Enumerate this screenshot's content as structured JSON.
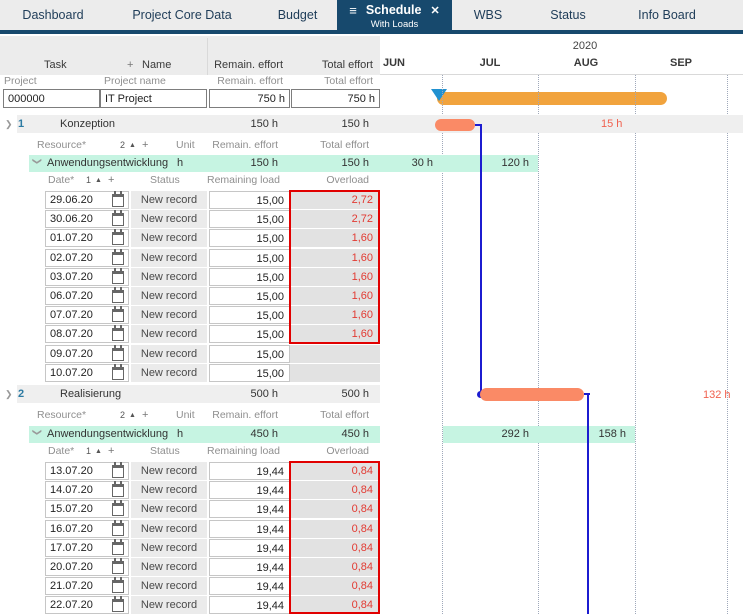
{
  "colors": {
    "navy": "#17496d",
    "tabtext": "#1e3c58",
    "orange": "#f1a33d",
    "salmon": "#fa8a66",
    "mint": "#c6f4e2",
    "blue": "#1c1cd0",
    "num": "#2d7ba3",
    "red": "#e23a32",
    "redborder": "#e10000",
    "redlabel": "#f0614f",
    "tribl": "#2191d0"
  },
  "icons": {
    "menu": "≡",
    "close": "✕",
    "chevron": "❯",
    "sort_asc": "▲",
    "add": "+"
  },
  "tabs": [
    {
      "label": "Dashboard"
    },
    {
      "label": "Project Core Data"
    },
    {
      "label": "Budget"
    },
    {
      "label": "Schedule",
      "sublabel": "With Loads",
      "active": true
    },
    {
      "label": "WBS"
    },
    {
      "label": "Status"
    },
    {
      "label": "Info Board"
    }
  ],
  "gantt": {
    "year": "2020",
    "months": [
      "JUN",
      "JUL",
      "AUG",
      "SEP"
    ]
  },
  "table": {
    "header": {
      "task": "Task",
      "add": "+",
      "name": "Name",
      "remain": "Remain. effort",
      "total": "Total effort"
    },
    "project": {
      "label": "Project",
      "name_label": "Project name",
      "remain_label": "Remain. effort",
      "total_label": "Total effort",
      "id": "000000",
      "name": "IT Project",
      "remain": "750 h",
      "total": "750 h"
    },
    "groups": [
      {
        "num": "1",
        "name": "Konzeption",
        "remain": "150 h",
        "total": "150 h",
        "gantt_overload_label": "15 h",
        "res_header": {
          "label": "Resource*",
          "sort": "2",
          "add": "+",
          "unit": "Unit",
          "remain": "Remain. effort",
          "total": "Total effort"
        },
        "resource": {
          "name": "Anwendungsentwicklung",
          "unit": "h",
          "remain": "150 h",
          "total": "150 h",
          "gantt_labels": [
            "30 h",
            "120 h"
          ]
        },
        "date_header": {
          "label": "Date*",
          "sort": "1",
          "add": "+",
          "status": "Status",
          "load": "Remaining load",
          "overload": "Overload"
        },
        "dates": [
          {
            "date": "29.06.20",
            "status": "New record",
            "load": "15,00",
            "overload": "2,72"
          },
          {
            "date": "30.06.20",
            "status": "New record",
            "load": "15,00",
            "overload": "2,72"
          },
          {
            "date": "01.07.20",
            "status": "New record",
            "load": "15,00",
            "overload": "1,60"
          },
          {
            "date": "02.07.20",
            "status": "New record",
            "load": "15,00",
            "overload": "1,60"
          },
          {
            "date": "03.07.20",
            "status": "New record",
            "load": "15,00",
            "overload": "1,60"
          },
          {
            "date": "06.07.20",
            "status": "New record",
            "load": "15,00",
            "overload": "1,60"
          },
          {
            "date": "07.07.20",
            "status": "New record",
            "load": "15,00",
            "overload": "1,60"
          },
          {
            "date": "08.07.20",
            "status": "New record",
            "load": "15,00",
            "overload": "1,60"
          },
          {
            "date": "09.07.20",
            "status": "New record",
            "load": "15,00",
            "overload": ""
          },
          {
            "date": "10.07.20",
            "status": "New record",
            "load": "15,00",
            "overload": ""
          }
        ]
      },
      {
        "num": "2",
        "name": "Realisierung",
        "remain": "500 h",
        "total": "500 h",
        "gantt_overload_label": "132 h",
        "res_header": {
          "label": "Resource*",
          "sort": "2",
          "add": "+",
          "unit": "Unit",
          "remain": "Remain. effort",
          "total": "Total effort"
        },
        "resource": {
          "name": "Anwendungsentwicklung",
          "unit": "h",
          "remain": "450 h",
          "total": "450 h",
          "gantt_labels": [
            "292 h",
            "158 h"
          ]
        },
        "date_header": {
          "label": "Date*",
          "sort": "1",
          "add": "+",
          "status": "Status",
          "load": "Remaining load",
          "overload": "Overload"
        },
        "dates": [
          {
            "date": "13.07.20",
            "status": "New record",
            "load": "19,44",
            "overload": "0,84"
          },
          {
            "date": "14.07.20",
            "status": "New record",
            "load": "19,44",
            "overload": "0,84"
          },
          {
            "date": "15.07.20",
            "status": "New record",
            "load": "19,44",
            "overload": "0,84"
          },
          {
            "date": "16.07.20",
            "status": "New record",
            "load": "19,44",
            "overload": "0,84"
          },
          {
            "date": "17.07.20",
            "status": "New record",
            "load": "19,44",
            "overload": "0,84"
          },
          {
            "date": "20.07.20",
            "status": "New record",
            "load": "19,44",
            "overload": "0,84"
          },
          {
            "date": "21.07.20",
            "status": "New record",
            "load": "19,44",
            "overload": "0,84"
          },
          {
            "date": "22.07.20",
            "status": "New record",
            "load": "19,44",
            "overload": "0,84"
          }
        ]
      }
    ]
  }
}
